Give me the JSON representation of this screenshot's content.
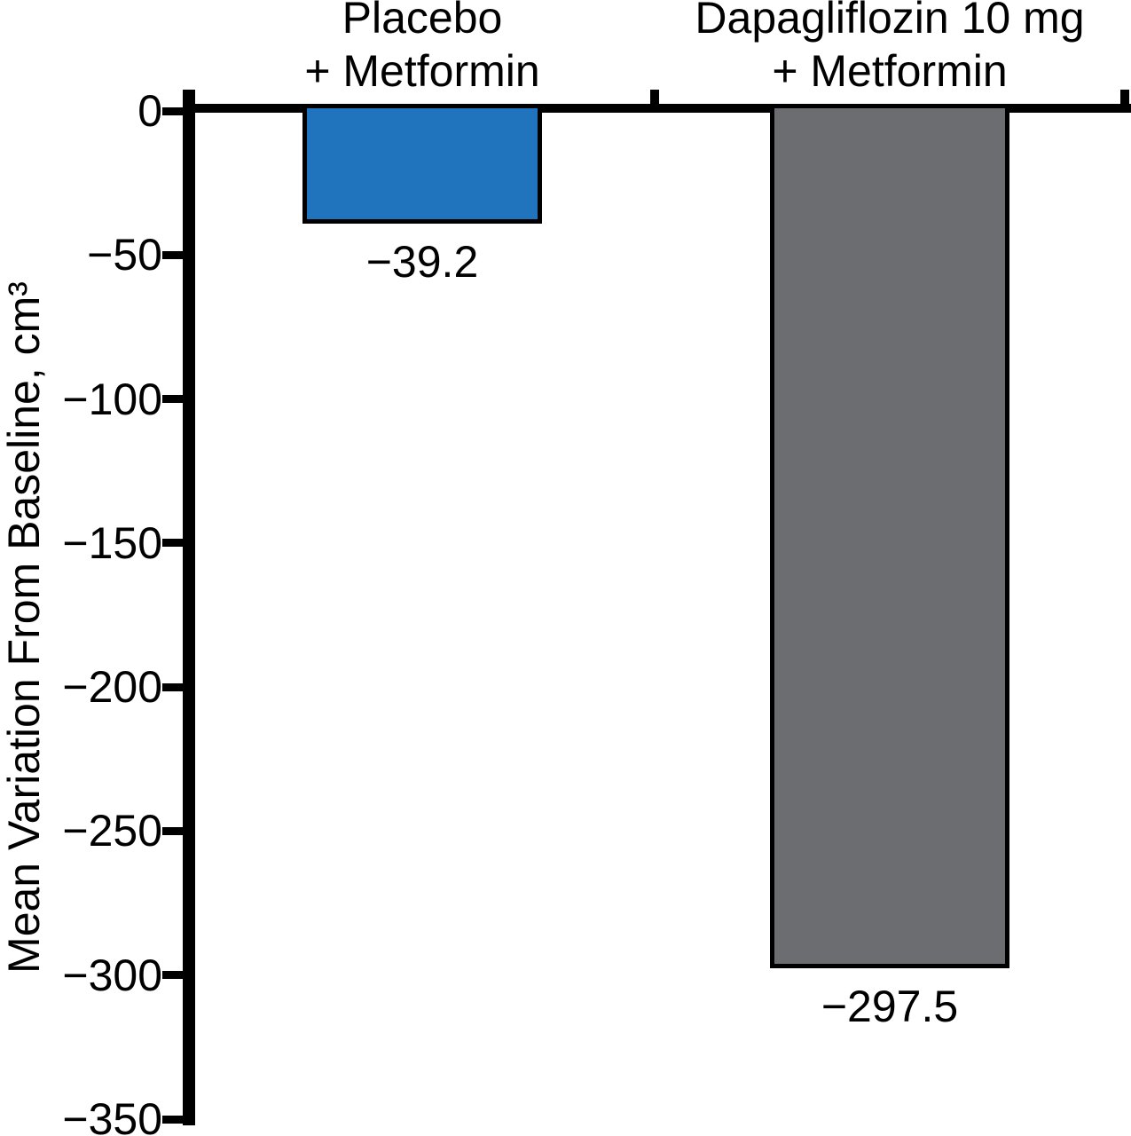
{
  "chart_data": {
    "type": "bar",
    "title": "",
    "xlabel": "",
    "ylabel": "Mean Variation From Baseline, cm³",
    "ylim": [
      -350,
      0
    ],
    "ytick_interval": 50,
    "grid": false,
    "legend": "none",
    "categories": [
      "Placebo + Metformin",
      "Dapagliflozin 10 mg + Metformin"
    ],
    "values": [
      -39.2,
      -297.5
    ],
    "bars": [
      {
        "category_lines": [
          "Placebo",
          "+ Metformin"
        ],
        "value": -39.2,
        "value_label": "−39.2",
        "color": "#1F74BD"
      },
      {
        "category_lines": [
          "Dapagliflozin 10 mg",
          "+ Metformin"
        ],
        "value": -297.5,
        "value_label": "−297.5",
        "color": "#6B6D70"
      }
    ],
    "yticks": [
      {
        "value": 0,
        "label": "0"
      },
      {
        "value": -50,
        "label": "−50"
      },
      {
        "value": -100,
        "label": "−100"
      },
      {
        "value": -150,
        "label": "−150"
      },
      {
        "value": -200,
        "label": "−200"
      },
      {
        "value": -250,
        "label": "−250"
      },
      {
        "value": -300,
        "label": "−300"
      },
      {
        "value": -350,
        "label": "−350"
      }
    ],
    "colors": {
      "placebo_bar": "#1F74BD",
      "dapagliflozin_bar": "#6B6D70",
      "axis": "#000000",
      "background": "#FFFFFF",
      "text": "#000000"
    }
  }
}
